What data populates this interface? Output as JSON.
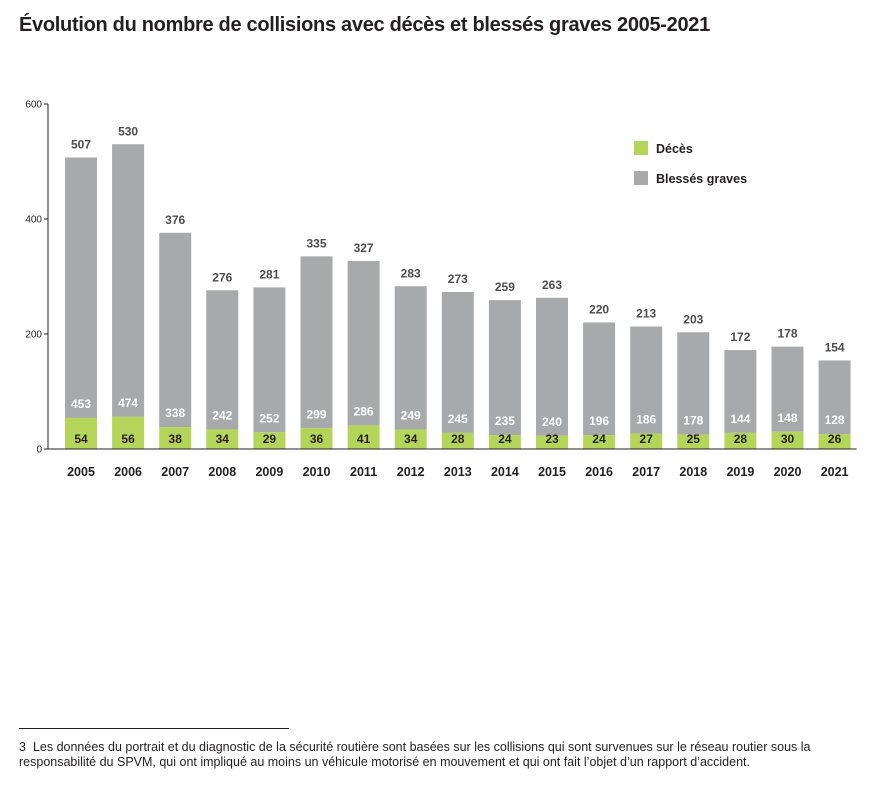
{
  "title": "Évolution du nombre de collisions avec décès et blessés graves 2005-2021",
  "footnote": {
    "number": "3",
    "text": "Les données du portrait et du diagnostic de la sécurité routière sont basées sur les collisions qui sont survenues sur le réseau routier sous la responsabilité du SPVM, qui ont impliqué au moins un véhicule motorisé en mouvement et qui ont fait l’objet d’un rapport d’accident."
  },
  "chart_data": {
    "type": "bar",
    "stacked": true,
    "title": "",
    "xlabel": "",
    "ylabel": "",
    "ylim": [
      0,
      600
    ],
    "yticks": [
      0,
      200,
      400,
      600
    ],
    "categories": [
      "2005",
      "2006",
      "2007",
      "2008",
      "2009",
      "2010",
      "2011",
      "2012",
      "2013",
      "2014",
      "2015",
      "2016",
      "2017",
      "2018",
      "2019",
      "2020",
      "2021"
    ],
    "series": [
      {
        "name": "Décès",
        "color": "#b5d55a",
        "values": [
          54,
          56,
          38,
          34,
          29,
          36,
          41,
          34,
          28,
          24,
          23,
          24,
          27,
          25,
          28,
          30,
          26
        ]
      },
      {
        "name": "Blessés graves",
        "color": "#a8a9ab",
        "values": [
          453,
          474,
          338,
          242,
          252,
          299,
          286,
          249,
          245,
          235,
          240,
          196,
          186,
          178,
          144,
          148,
          128
        ]
      }
    ],
    "totals": [
      507,
      530,
      376,
      276,
      281,
      335,
      327,
      283,
      273,
      259,
      263,
      220,
      213,
      203,
      172,
      178,
      154
    ],
    "grid": false,
    "legend_position": "top-right"
  }
}
